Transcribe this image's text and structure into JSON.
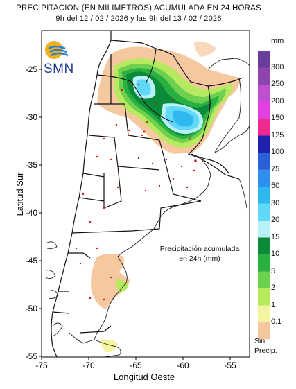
{
  "title": {
    "line1": "PRECIPITACION (EN MILIMETROS) ACUMULADA EN 24 HORAS",
    "line2": "9h del 12 / 02 / 2026  y las 9h del 13 / 02 / 2026"
  },
  "logo": {
    "text": "SMN"
  },
  "axes": {
    "xlabel": "Longitud Oeste",
    "ylabel": "Latitud Sur",
    "xticks": [
      "-75",
      "-70",
      "-65",
      "-60",
      "-55"
    ],
    "yticks": [
      "-25",
      "-30",
      "-35",
      "-40",
      "-45",
      "-50",
      "-55"
    ],
    "xlim": [
      -75,
      -52
    ],
    "ylim": [
      -55,
      -21
    ]
  },
  "legend": {
    "unit": "mm",
    "no_precip_line1": "Sin",
    "no_precip_line2": "Precip.",
    "classes": [
      {
        "label": "300",
        "color": "#6a3d9a"
      },
      {
        "label": "250",
        "color": "#8e44ad"
      },
      {
        "label": "200",
        "color": "#c04fd0"
      },
      {
        "label": "150",
        "color": "#e040e0"
      },
      {
        "label": "125",
        "color": "#f02890"
      },
      {
        "label": "100",
        "color": "#2020b0"
      },
      {
        "label": "75",
        "color": "#2a5fd8"
      },
      {
        "label": "50",
        "color": "#2f8ff0"
      },
      {
        "label": "30",
        "color": "#2fb8f0"
      },
      {
        "label": "20",
        "color": "#60d8f8"
      },
      {
        "label": "15",
        "color": "#b8f0f8"
      },
      {
        "label": "10",
        "color": "#0b8a3a"
      },
      {
        "label": "5",
        "color": "#28b040"
      },
      {
        "label": "2",
        "color": "#6ed050"
      },
      {
        "label": "1",
        "color": "#b8ea60"
      },
      {
        "label": "0.1",
        "color": "#f4f4a0"
      },
      {
        "label": "",
        "color": "#f6c8a0"
      }
    ]
  },
  "annotation": {
    "line1": "Precipitación acumulada",
    "line2": "en 24h (mm)"
  }
}
